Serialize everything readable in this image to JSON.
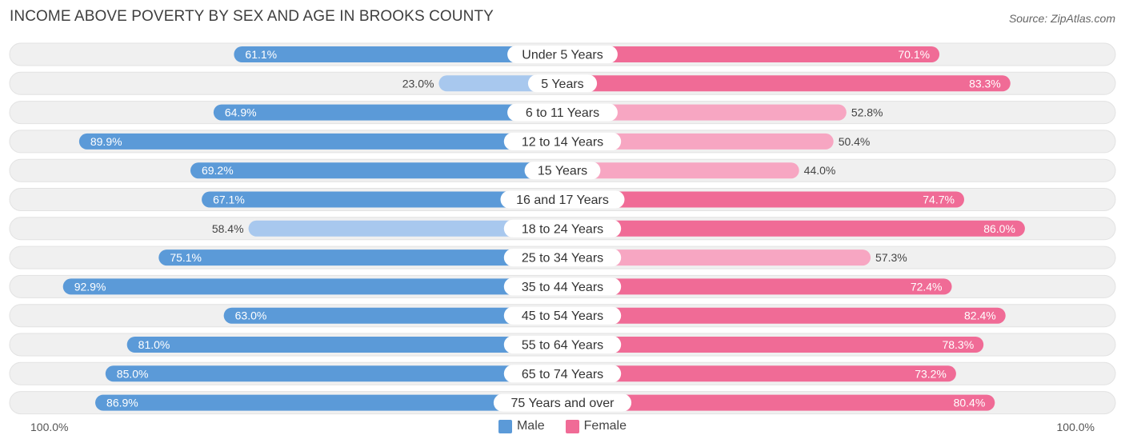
{
  "title": "INCOME ABOVE POVERTY BY SEX AND AGE IN BROOKS COUNTY",
  "source": "Source: ZipAtlas.com",
  "colors": {
    "male_dark": "#5b9ad8",
    "male_light": "#a8c8ee",
    "female_dark": "#f06b96",
    "female_light": "#f7a6c2",
    "row_bg": "#f0f0f0"
  },
  "chart_data": {
    "type": "bar",
    "title": "INCOME ABOVE POVERTY BY SEX AND AGE IN BROOKS COUNTY",
    "categories": [
      "Under 5 Years",
      "5 Years",
      "6 to 11 Years",
      "12 to 14 Years",
      "15 Years",
      "16 and 17 Years",
      "18 to 24 Years",
      "25 to 34 Years",
      "35 to 44 Years",
      "45 to 54 Years",
      "55 to 64 Years",
      "65 to 74 Years",
      "75 Years and over"
    ],
    "series": [
      {
        "name": "Male",
        "values": [
          61.1,
          23.0,
          64.9,
          89.9,
          69.2,
          67.1,
          58.4,
          75.1,
          92.9,
          63.0,
          81.0,
          85.0,
          86.9
        ]
      },
      {
        "name": "Female",
        "values": [
          70.1,
          83.3,
          52.8,
          50.4,
          44.0,
          74.7,
          86.0,
          57.3,
          72.4,
          82.4,
          78.3,
          73.2,
          80.4
        ]
      }
    ],
    "axis_min_label": "100.0%",
    "axis_max_label": "100.0%",
    "xlim": [
      -100,
      100
    ],
    "legend_position": "bottom-center"
  },
  "legend": {
    "male": "Male",
    "female": "Female"
  }
}
